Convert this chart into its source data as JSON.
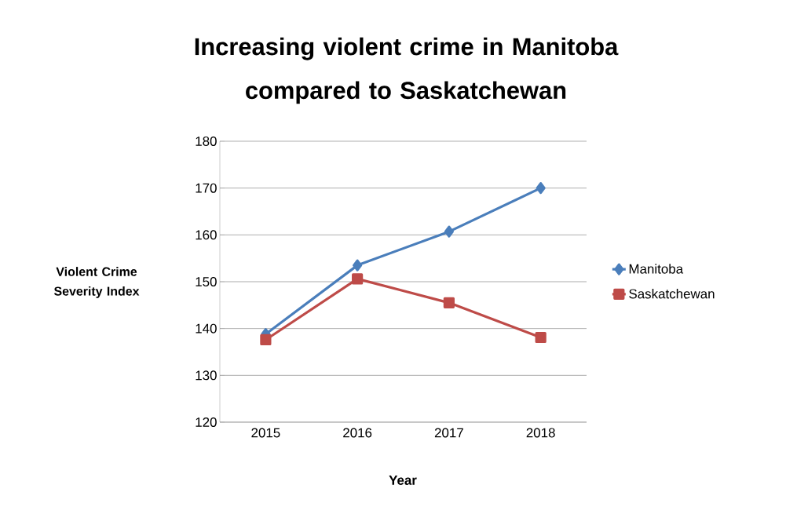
{
  "chart_data": {
    "type": "line",
    "title": "Increasing violent crime in Manitoba compared to Saskatchewan",
    "xlabel": "Year",
    "ylabel": "Violent Crime Severity Index",
    "categories": [
      "2015",
      "2016",
      "2017",
      "2018"
    ],
    "series": [
      {
        "name": "Manitoba",
        "color": "#4a7ebb",
        "marker": "diamond",
        "values": [
          138.8,
          153.5,
          160.7,
          170.0
        ]
      },
      {
        "name": "Saskatchewan",
        "color": "#be4b48",
        "marker": "square",
        "values": [
          137.6,
          150.6,
          145.5,
          138.1
        ]
      }
    ],
    "ylim": [
      120,
      180
    ],
    "yticks": [
      120,
      130,
      140,
      150,
      160,
      170,
      180
    ],
    "grid": "y",
    "legend": "right",
    "line_style": "solid"
  }
}
